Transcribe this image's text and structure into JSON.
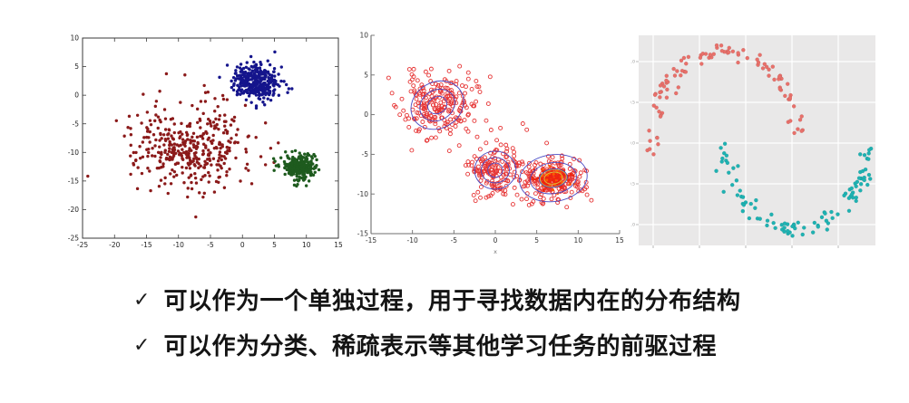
{
  "slide": {
    "bullets": [
      {
        "marker": "✓",
        "text": "可以作为一个单独过程，用于寻找数据内在的分布结构"
      },
      {
        "marker": "✓",
        "text": "可以作为分类、稀疏表示等其他学习任务的前驱过程"
      }
    ]
  },
  "chart_data": [
    {
      "type": "scatter",
      "name": "three-gaussian-clusters",
      "title": "",
      "xlabel": "",
      "ylabel": "",
      "xlim": [
        -25,
        15
      ],
      "ylim": [
        -25,
        10
      ],
      "xticks": [
        -25,
        -20,
        -15,
        -10,
        -5,
        0,
        5,
        10,
        15
      ],
      "yticks": [
        10,
        5,
        0,
        -5,
        -10,
        -15,
        -20,
        -25
      ],
      "frame": "full-box",
      "grid": false,
      "clusters": [
        {
          "name": "cluster-darkred",
          "color": "#8B1A1A",
          "center": [
            -8,
            -9
          ],
          "std": [
            4.5,
            3.9
          ],
          "n": 390,
          "marker": "filled-dot"
        },
        {
          "name": "cluster-navy",
          "color": "#15158C",
          "center": [
            2,
            2.5
          ],
          "std": [
            1.7,
            1.5
          ],
          "n": 340,
          "marker": "filled-dot"
        },
        {
          "name": "cluster-green",
          "color": "#1E5B1E",
          "center": [
            9,
            -12.5
          ],
          "std": [
            1.3,
            1.1
          ],
          "n": 240,
          "marker": "filled-dot"
        }
      ]
    },
    {
      "type": "scatter",
      "name": "gmm-clusters-with-ellipses",
      "title": "",
      "xlabel": "x",
      "ylabel": "",
      "xlim": [
        -15,
        15
      ],
      "ylim": [
        -15,
        10
      ],
      "xticks": [
        -15,
        -10,
        -5,
        0,
        5,
        10,
        15
      ],
      "yticks": [
        10,
        5,
        0,
        -5,
        -10,
        -15
      ],
      "frame": "left-bottom-axes",
      "grid": false,
      "point_color": "#E63434",
      "core_color": "#EE2510",
      "ellipse_color": "#4A4AC4",
      "inner_ring_color": "#D9C43B",
      "clusters": [
        {
          "name": "gmm-cluster-1",
          "center": [
            -7,
            1.2
          ],
          "std": [
            2.2,
            2.0
          ],
          "n": 230,
          "marker": "open-circle"
        },
        {
          "name": "gmm-cluster-2",
          "center": [
            0,
            -7
          ],
          "std": [
            1.6,
            1.7
          ],
          "n": 170,
          "marker": "open-circle"
        },
        {
          "name": "gmm-cluster-3",
          "center": [
            7,
            -8
          ],
          "std": [
            2.0,
            1.4
          ],
          "n": 220,
          "marker": "open-circle",
          "core_n": 150,
          "core_std": [
            0.95,
            0.62
          ]
        }
      ],
      "gmm_ellipses": [
        {
          "center": [
            -7,
            1.2
          ],
          "radii": [
            [
              1.2,
              1.05
            ],
            [
              2.2,
              1.9
            ],
            [
              3.3,
              2.9
            ]
          ],
          "rotation": -30
        },
        {
          "center": [
            0,
            -7
          ],
          "radii": [
            [
              0.9,
              0.9
            ],
            [
              1.7,
              1.6
            ],
            [
              2.5,
              2.4
            ]
          ],
          "rotation": 0
        },
        {
          "center": [
            7,
            -8
          ],
          "radii": [
            [
              1.7,
              1.15
            ],
            [
              2.8,
              1.95
            ],
            [
              4.1,
              2.95
            ]
          ],
          "rotation": -8
        }
      ],
      "inner_rings": [
        {
          "center": [
            7,
            -8
          ],
          "radii": [
            [
              1.1,
              0.75
            ],
            [
              1.6,
              1.1
            ]
          ],
          "rotation": -8
        }
      ]
    },
    {
      "type": "scatter",
      "name": "two-moons",
      "title": "",
      "xlabel": "",
      "ylabel": "",
      "style": "ggplot-gray-panel",
      "panel_color": "#E9E8E8",
      "grid_color": "#FFFFFF",
      "ytick_labels": [
        "1.0",
        "0.5",
        "0.0",
        "-0.5",
        "-1.0"
      ],
      "clusters": [
        {
          "name": "moon-upper",
          "color": "#E8706A",
          "n": 100,
          "shape": "upper-half-moon"
        },
        {
          "name": "moon-lower",
          "color": "#1FB2B2",
          "n": 100,
          "shape": "lower-half-moon"
        }
      ]
    }
  ]
}
